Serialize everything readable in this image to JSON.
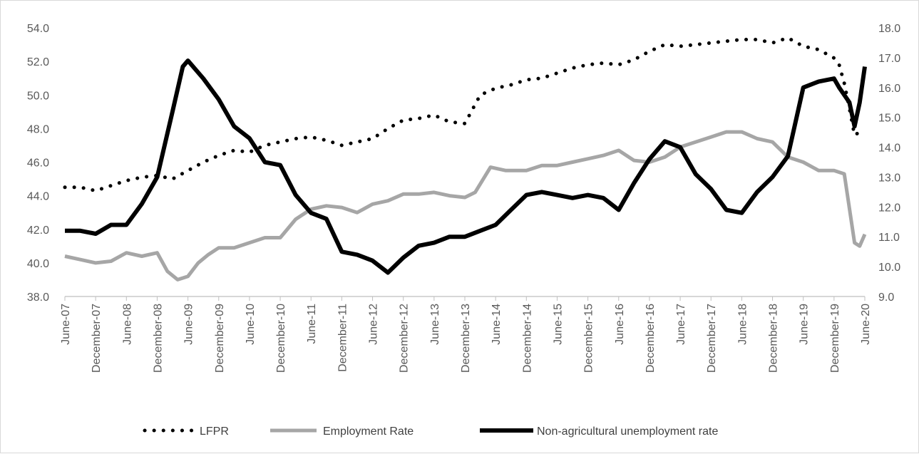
{
  "chart_data": {
    "type": "line",
    "title": "",
    "xlabel": "",
    "ylabel": "",
    "y_left": {
      "min": 38.0,
      "max": 54.0,
      "step": 2.0,
      "ticks": [
        "38.0",
        "40.0",
        "42.0",
        "44.0",
        "46.0",
        "48.0",
        "50.0",
        "52.0",
        "54.0"
      ]
    },
    "y_right": {
      "min": 9.0,
      "max": 18.0,
      "step": 1.0,
      "ticks": [
        "9.0",
        "10.0",
        "11.0",
        "12.0",
        "13.0",
        "14.0",
        "15.0",
        "16.0",
        "17.0",
        "18.0"
      ]
    },
    "x_range": [
      "2007-06",
      "2020-06"
    ],
    "x_ticks": [
      "June-07",
      "December-07",
      "June-08",
      "December-08",
      "June-09",
      "December-09",
      "June-10",
      "December-10",
      "June-11",
      "December-11",
      "June-12",
      "December-12",
      "June-13",
      "December-13",
      "June-14",
      "December-14",
      "June-15",
      "December-15",
      "June-16",
      "December-16",
      "June-17",
      "December-17",
      "June-18",
      "December-18",
      "June-19",
      "December-19",
      "June-20"
    ],
    "grid": false,
    "legend_position": "bottom",
    "series": [
      {
        "name": "LFPR",
        "axis": "left",
        "style": "dotted",
        "color": "#000000",
        "points": [
          [
            "2007-06",
            44.5
          ],
          [
            "2007-09",
            44.5
          ],
          [
            "2007-12",
            44.3
          ],
          [
            "2008-03",
            44.6
          ],
          [
            "2008-06",
            44.9
          ],
          [
            "2008-09",
            45.1
          ],
          [
            "2008-12",
            45.2
          ],
          [
            "2009-03",
            45.0
          ],
          [
            "2009-06",
            45.5
          ],
          [
            "2009-09",
            46.0
          ],
          [
            "2009-12",
            46.4
          ],
          [
            "2010-03",
            46.7
          ],
          [
            "2010-06",
            46.6
          ],
          [
            "2010-09",
            47.0
          ],
          [
            "2010-12",
            47.2
          ],
          [
            "2011-03",
            47.4
          ],
          [
            "2011-06",
            47.5
          ],
          [
            "2011-09",
            47.3
          ],
          [
            "2011-12",
            47.0
          ],
          [
            "2012-03",
            47.2
          ],
          [
            "2012-06",
            47.4
          ],
          [
            "2012-09",
            48.0
          ],
          [
            "2012-12",
            48.5
          ],
          [
            "2013-03",
            48.6
          ],
          [
            "2013-06",
            48.8
          ],
          [
            "2013-09",
            48.4
          ],
          [
            "2013-12",
            48.3
          ],
          [
            "2014-03",
            50.0
          ],
          [
            "2014-06",
            50.4
          ],
          [
            "2014-09",
            50.6
          ],
          [
            "2014-12",
            50.9
          ],
          [
            "2015-03",
            51.0
          ],
          [
            "2015-06",
            51.3
          ],
          [
            "2015-09",
            51.6
          ],
          [
            "2015-12",
            51.8
          ],
          [
            "2016-03",
            51.9
          ],
          [
            "2016-06",
            51.8
          ],
          [
            "2016-09",
            52.1
          ],
          [
            "2016-12",
            52.6
          ],
          [
            "2017-03",
            53.0
          ],
          [
            "2017-06",
            52.9
          ],
          [
            "2017-09",
            53.0
          ],
          [
            "2017-12",
            53.1
          ],
          [
            "2018-03",
            53.2
          ],
          [
            "2018-06",
            53.3
          ],
          [
            "2018-09",
            53.3
          ],
          [
            "2018-12",
            53.1
          ],
          [
            "2019-03",
            53.4
          ],
          [
            "2019-06",
            52.9
          ],
          [
            "2019-09",
            52.7
          ],
          [
            "2019-12",
            52.2
          ],
          [
            "2020-01",
            51.8
          ],
          [
            "2020-02",
            50.7
          ],
          [
            "2020-03",
            49.2
          ],
          [
            "2020-04",
            47.6
          ],
          [
            "2020-06",
            48.0
          ]
        ]
      },
      {
        "name": "Employment Rate",
        "axis": "left",
        "style": "solid",
        "color": "#a6a6a6",
        "points": [
          [
            "2007-06",
            40.4
          ],
          [
            "2007-09",
            40.2
          ],
          [
            "2007-12",
            40.0
          ],
          [
            "2008-03",
            40.1
          ],
          [
            "2008-06",
            40.6
          ],
          [
            "2008-09",
            40.4
          ],
          [
            "2008-12",
            40.6
          ],
          [
            "2009-02",
            39.5
          ],
          [
            "2009-04",
            39.0
          ],
          [
            "2009-06",
            39.2
          ],
          [
            "2009-08",
            40.0
          ],
          [
            "2009-10",
            40.5
          ],
          [
            "2009-12",
            40.9
          ],
          [
            "2010-03",
            40.9
          ],
          [
            "2010-06",
            41.2
          ],
          [
            "2010-09",
            41.5
          ],
          [
            "2010-12",
            41.5
          ],
          [
            "2011-03",
            42.6
          ],
          [
            "2011-06",
            43.2
          ],
          [
            "2011-09",
            43.4
          ],
          [
            "2011-12",
            43.3
          ],
          [
            "2012-03",
            43.0
          ],
          [
            "2012-06",
            43.5
          ],
          [
            "2012-09",
            43.7
          ],
          [
            "2012-12",
            44.1
          ],
          [
            "2013-03",
            44.1
          ],
          [
            "2013-06",
            44.2
          ],
          [
            "2013-09",
            44.0
          ],
          [
            "2013-12",
            43.9
          ],
          [
            "2014-02",
            44.2
          ],
          [
            "2014-05",
            45.7
          ],
          [
            "2014-08",
            45.5
          ],
          [
            "2014-12",
            45.5
          ],
          [
            "2015-03",
            45.8
          ],
          [
            "2015-06",
            45.8
          ],
          [
            "2015-09",
            46.0
          ],
          [
            "2015-12",
            46.2
          ],
          [
            "2016-03",
            46.4
          ],
          [
            "2016-06",
            46.7
          ],
          [
            "2016-09",
            46.1
          ],
          [
            "2016-12",
            46.0
          ],
          [
            "2017-03",
            46.3
          ],
          [
            "2017-06",
            46.9
          ],
          [
            "2017-09",
            47.2
          ],
          [
            "2017-12",
            47.5
          ],
          [
            "2018-03",
            47.8
          ],
          [
            "2018-06",
            47.8
          ],
          [
            "2018-09",
            47.4
          ],
          [
            "2018-12",
            47.2
          ],
          [
            "2019-03",
            46.3
          ],
          [
            "2019-06",
            46.0
          ],
          [
            "2019-09",
            45.5
          ],
          [
            "2019-12",
            45.5
          ],
          [
            "2020-02",
            45.3
          ],
          [
            "2020-04",
            41.2
          ],
          [
            "2020-05",
            41.0
          ],
          [
            "2020-06",
            41.7
          ]
        ]
      },
      {
        "name": "Non-agricultural unemployment rate",
        "axis": "right",
        "style": "solid",
        "color": "#000000",
        "points": [
          [
            "2007-06",
            11.2
          ],
          [
            "2007-09",
            11.2
          ],
          [
            "2007-12",
            11.1
          ],
          [
            "2008-03",
            11.4
          ],
          [
            "2008-06",
            11.4
          ],
          [
            "2008-09",
            12.1
          ],
          [
            "2008-12",
            13.0
          ],
          [
            "2009-03",
            15.2
          ],
          [
            "2009-05",
            16.7
          ],
          [
            "2009-06",
            16.9
          ],
          [
            "2009-09",
            16.3
          ],
          [
            "2009-12",
            15.6
          ],
          [
            "2010-03",
            14.7
          ],
          [
            "2010-06",
            14.3
          ],
          [
            "2010-09",
            13.5
          ],
          [
            "2010-12",
            13.4
          ],
          [
            "2011-03",
            12.4
          ],
          [
            "2011-06",
            11.8
          ],
          [
            "2011-09",
            11.6
          ],
          [
            "2011-12",
            10.5
          ],
          [
            "2012-03",
            10.4
          ],
          [
            "2012-06",
            10.2
          ],
          [
            "2012-09",
            9.8
          ],
          [
            "2012-12",
            10.3
          ],
          [
            "2013-03",
            10.7
          ],
          [
            "2013-06",
            10.8
          ],
          [
            "2013-09",
            11.0
          ],
          [
            "2013-12",
            11.0
          ],
          [
            "2014-03",
            11.2
          ],
          [
            "2014-06",
            11.4
          ],
          [
            "2014-09",
            11.9
          ],
          [
            "2014-12",
            12.4
          ],
          [
            "2015-03",
            12.5
          ],
          [
            "2015-06",
            12.4
          ],
          [
            "2015-09",
            12.3
          ],
          [
            "2015-12",
            12.4
          ],
          [
            "2016-03",
            12.3
          ],
          [
            "2016-06",
            11.9
          ],
          [
            "2016-09",
            12.8
          ],
          [
            "2016-12",
            13.6
          ],
          [
            "2017-03",
            14.2
          ],
          [
            "2017-06",
            14.0
          ],
          [
            "2017-09",
            13.1
          ],
          [
            "2017-12",
            12.6
          ],
          [
            "2018-03",
            11.9
          ],
          [
            "2018-06",
            11.8
          ],
          [
            "2018-09",
            12.5
          ],
          [
            "2018-12",
            13.0
          ],
          [
            "2019-03",
            13.7
          ],
          [
            "2019-06",
            16.0
          ],
          [
            "2019-09",
            16.2
          ],
          [
            "2019-12",
            16.3
          ],
          [
            "2020-01",
            16.0
          ],
          [
            "2020-03",
            15.5
          ],
          [
            "2020-04",
            14.7
          ],
          [
            "2020-05",
            15.5
          ],
          [
            "2020-06",
            16.7
          ]
        ]
      }
    ]
  },
  "legend": {
    "items": [
      {
        "label": "LFPR",
        "style": "dotted",
        "color": "#000000"
      },
      {
        "label": "Employment Rate",
        "style": "solid",
        "color": "#a6a6a6"
      },
      {
        "label": "Non-agricultural unemployment rate",
        "style": "solid",
        "color": "#000000"
      }
    ]
  }
}
